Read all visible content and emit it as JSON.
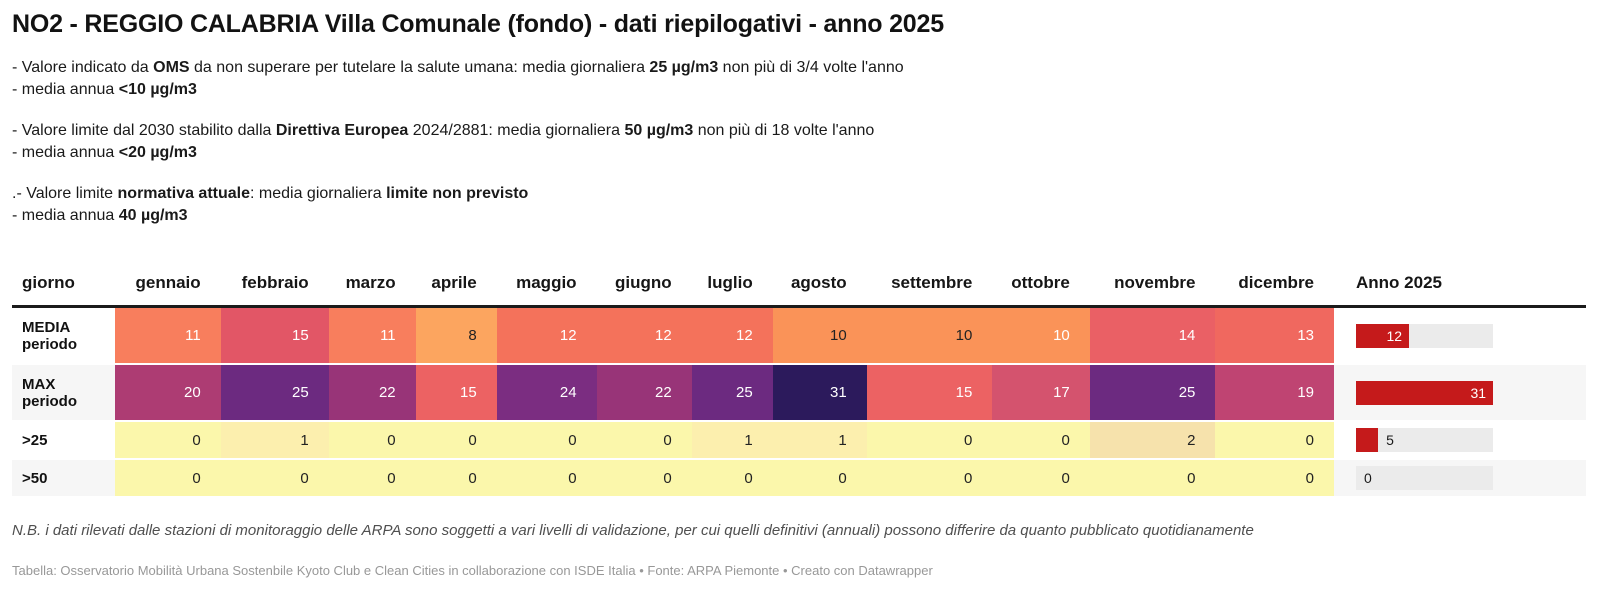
{
  "header": {
    "title": "NO2 - REGGIO CALABRIA Villa Comunale (fondo) - dati riepilogativi - anno 2025"
  },
  "intro_groups": [
    [
      [
        {
          "t": "- Valore indicato da "
        },
        {
          "t": "OMS",
          "b": true
        },
        {
          "t": " da non superare per tutelare la salute umana: media giornaliera "
        },
        {
          "t": "25 µg/m3",
          "b": true
        },
        {
          "t": " non più di 3/4 volte l'anno"
        }
      ],
      [
        {
          "t": "- media annua "
        },
        {
          "t": "<10 µg/m3",
          "b": true
        }
      ]
    ],
    [
      [
        {
          "t": "- Valore limite dal 2030 stabilito dalla "
        },
        {
          "t": "Direttiva Europea",
          "b": true
        },
        {
          "t": " 2024/2881: media giornaliera "
        },
        {
          "t": "50 µg/m3",
          "b": true
        },
        {
          "t": " non più di 18 volte l'anno"
        }
      ],
      [
        {
          "t": "- media annua "
        },
        {
          "t": "<20 µg/m3",
          "b": true
        }
      ]
    ],
    [
      [
        {
          "t": ".- Valore limite "
        },
        {
          "t": "normativa attuale",
          "b": true
        },
        {
          "t": ": media giornaliera "
        },
        {
          "t": "limite non previsto",
          "b": true
        }
      ],
      [
        {
          "t": "- media annua "
        },
        {
          "t": "40 µg/m3",
          "b": true
        }
      ]
    ]
  ],
  "chart_data": {
    "type": "table",
    "title": "NO2 - REGGIO CALABRIA Villa Comunale (fondo) - dati riepilogativi - anno 2025",
    "columns": [
      "giorno",
      "gennaio",
      "febbraio",
      "marzo",
      "aprile",
      "maggio",
      "giugno",
      "luglio",
      "agosto",
      "settembre",
      "ottobre",
      "novembre",
      "dicembre",
      "Anno 2025"
    ],
    "anno_max": 31,
    "bar_color": "#c51a1b",
    "bar_track_color": "#ebebeb",
    "stripe_color": "#f6f6f6",
    "header_rule_color": "#1b1b1b",
    "rows": [
      {
        "label": "MEDIA periodo",
        "values": [
          11,
          15,
          11,
          8,
          12,
          12,
          12,
          10,
          10,
          10,
          14,
          13
        ],
        "cell_colors": [
          "#f87e5d",
          "#e25666",
          "#f87e5d",
          "#fca55f",
          "#f4725b",
          "#f4725b",
          "#f4725b",
          "#fa9358",
          "#fa9358",
          "#fa9358",
          "#ea6065",
          "#f0685f"
        ],
        "text_light": [
          true,
          true,
          true,
          false,
          true,
          true,
          true,
          false,
          false,
          true,
          true,
          true
        ],
        "anno": {
          "value": 12,
          "label_inside": true
        }
      },
      {
        "label": "MAX periodo",
        "values": [
          20,
          25,
          22,
          15,
          24,
          22,
          25,
          31,
          15,
          17,
          25,
          19
        ],
        "cell_colors": [
          "#ad3c73",
          "#6c2a80",
          "#983478",
          "#ec6263",
          "#7b2d81",
          "#983478",
          "#6c2a80",
          "#2c1a5c",
          "#ec6263",
          "#d4536e",
          "#6c2a80",
          "#bf4472"
        ],
        "text_light": [
          true,
          true,
          true,
          true,
          true,
          true,
          true,
          true,
          true,
          true,
          true,
          true
        ],
        "anno": {
          "value": 31,
          "label_inside": true
        }
      },
      {
        "label": ">25",
        "values": [
          0,
          1,
          0,
          0,
          0,
          0,
          1,
          1,
          0,
          0,
          2,
          0
        ],
        "cell_colors": [
          "#fbf7ab",
          "#fcefae",
          "#fbf7ab",
          "#fbf7ab",
          "#fbf7ab",
          "#fbf7ab",
          "#fcefae",
          "#fcefae",
          "#fbf7ab",
          "#fbf7ab",
          "#f6e2ac",
          "#fbf7ab"
        ],
        "text_light": [
          false,
          false,
          false,
          false,
          false,
          false,
          false,
          false,
          false,
          false,
          false,
          false
        ],
        "anno": {
          "value": 5,
          "label_inside": false
        }
      },
      {
        "label": ">50",
        "values": [
          0,
          0,
          0,
          0,
          0,
          0,
          0,
          0,
          0,
          0,
          0,
          0
        ],
        "cell_colors": [
          "#fbf7ab",
          "#fbf7ab",
          "#fbf7ab",
          "#fbf7ab",
          "#fbf7ab",
          "#fbf7ab",
          "#fbf7ab",
          "#fbf7ab",
          "#fbf7ab",
          "#fbf7ab",
          "#fbf7ab",
          "#fbf7ab"
        ],
        "text_light": [
          false,
          false,
          false,
          false,
          false,
          false,
          false,
          false,
          false,
          false,
          false,
          false
        ],
        "anno": {
          "value": 0,
          "label_inside": false
        }
      }
    ]
  },
  "footer": {
    "note": "N.B. i dati rilevati dalle stazioni di monitoraggio delle ARPA sono soggetti a vari livelli di validazione, per cui quelli definitivi (annuali) possono differire da quanto pubblicato quotidianamente",
    "attribution": "Tabella: Osservatorio Mobilità Urbana Sostenbile Kyoto Club e Clean Cities in collaborazione con ISDE Italia • Fonte: ARPA Piemonte • Creato con Datawrapper"
  }
}
